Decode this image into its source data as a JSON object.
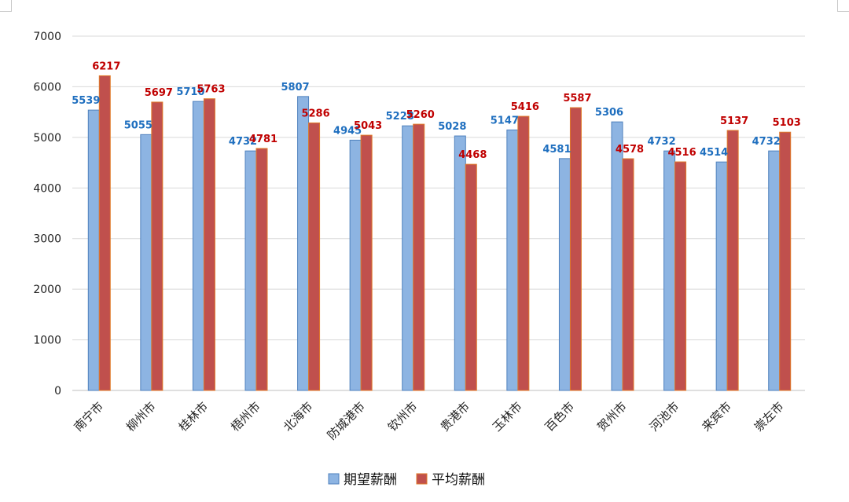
{
  "chart_data": {
    "type": "bar",
    "categories": [
      "南宁市",
      "柳州市",
      "桂林市",
      "梧州市",
      "北海市",
      "防城港市",
      "钦州市",
      "贵港市",
      "玉林市",
      "百色市",
      "贺州市",
      "河池市",
      "来宾市",
      "崇左市"
    ],
    "series": [
      {
        "name": "期望薪酬",
        "values": [
          5539,
          5055,
          5710,
          4732,
          5807,
          4945,
          5228,
          5028,
          5147,
          4581,
          5306,
          4732,
          4514,
          4732
        ]
      },
      {
        "name": "平均薪酬",
        "values": [
          6217,
          5697,
          5763,
          4781,
          5286,
          5043,
          5260,
          4468,
          5416,
          5587,
          4578,
          4516,
          5137,
          5103
        ]
      }
    ],
    "ylim": [
      0,
      7000
    ],
    "yticks": [
      0,
      1000,
      2000,
      3000,
      4000,
      5000,
      6000,
      7000
    ],
    "grid": true,
    "legend": "bottom",
    "colors": {
      "series_a_fill": "#8db4e2",
      "series_a_edge": "#4f81bd",
      "series_a_label": "#1f6fbf",
      "series_b_fill": "#c0504d",
      "series_b_edge": "#e07a2a",
      "series_b_label": "#c00000",
      "gridline": "#d9d9d9"
    }
  }
}
